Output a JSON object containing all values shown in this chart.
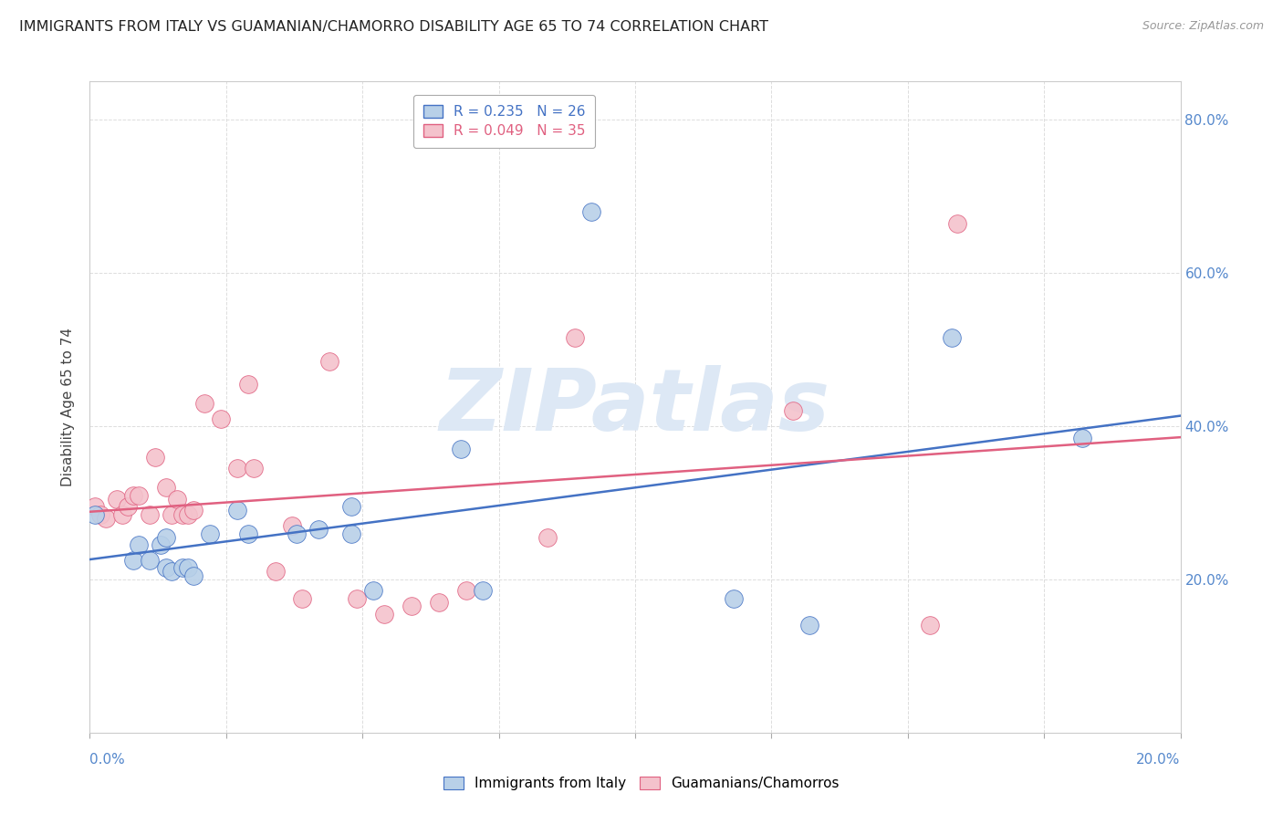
{
  "title": "IMMIGRANTS FROM ITALY VS GUAMANIAN/CHAMORRO DISABILITY AGE 65 TO 74 CORRELATION CHART",
  "source": "Source: ZipAtlas.com",
  "ylabel": "Disability Age 65 to 74",
  "xlim": [
    0.0,
    0.2
  ],
  "ylim": [
    0.0,
    0.85
  ],
  "yticks": [
    0.0,
    0.2,
    0.4,
    0.6,
    0.8
  ],
  "xticks": [
    0.0,
    0.025,
    0.05,
    0.075,
    0.1,
    0.125,
    0.15,
    0.175,
    0.2
  ],
  "right_ytick_labels": [
    "20.0%",
    "40.0%",
    "60.0%",
    "80.0%"
  ],
  "series1_name": "Immigrants from Italy",
  "series1_color": "#b8d0e8",
  "series1_line_color": "#4472c4",
  "series1_R": 0.235,
  "series1_N": 26,
  "series2_name": "Guamanians/Chamorros",
  "series2_color": "#f4c2cc",
  "series2_line_color": "#e06080",
  "series2_R": 0.049,
  "series2_N": 35,
  "watermark": "ZIPatlas",
  "watermark_color": "#dde8f5",
  "series1_x": [
    0.001,
    0.008,
    0.009,
    0.011,
    0.013,
    0.014,
    0.014,
    0.015,
    0.017,
    0.018,
    0.019,
    0.022,
    0.027,
    0.029,
    0.038,
    0.042,
    0.048,
    0.048,
    0.052,
    0.068,
    0.072,
    0.092,
    0.118,
    0.132,
    0.158,
    0.182
  ],
  "series1_y": [
    0.285,
    0.225,
    0.245,
    0.225,
    0.245,
    0.255,
    0.215,
    0.21,
    0.215,
    0.215,
    0.205,
    0.26,
    0.29,
    0.26,
    0.26,
    0.265,
    0.295,
    0.26,
    0.185,
    0.37,
    0.185,
    0.68,
    0.175,
    0.14,
    0.515,
    0.385
  ],
  "series2_x": [
    0.001,
    0.002,
    0.003,
    0.005,
    0.006,
    0.007,
    0.008,
    0.009,
    0.011,
    0.012,
    0.014,
    0.015,
    0.016,
    0.017,
    0.018,
    0.019,
    0.021,
    0.024,
    0.027,
    0.029,
    0.03,
    0.034,
    0.037,
    0.039,
    0.044,
    0.049,
    0.054,
    0.059,
    0.064,
    0.069,
    0.084,
    0.089,
    0.129,
    0.154,
    0.159
  ],
  "series2_y": [
    0.295,
    0.285,
    0.28,
    0.305,
    0.285,
    0.295,
    0.31,
    0.31,
    0.285,
    0.36,
    0.32,
    0.285,
    0.305,
    0.285,
    0.285,
    0.29,
    0.43,
    0.41,
    0.345,
    0.455,
    0.345,
    0.21,
    0.27,
    0.175,
    0.485,
    0.175,
    0.155,
    0.165,
    0.17,
    0.185,
    0.255,
    0.515,
    0.42,
    0.14,
    0.665
  ],
  "grid_color": "#dddddd",
  "background_color": "#ffffff",
  "title_fontsize": 11.5,
  "axis_label_fontsize": 11,
  "tick_label_color": "#5588cc",
  "tick_label_fontsize": 11
}
